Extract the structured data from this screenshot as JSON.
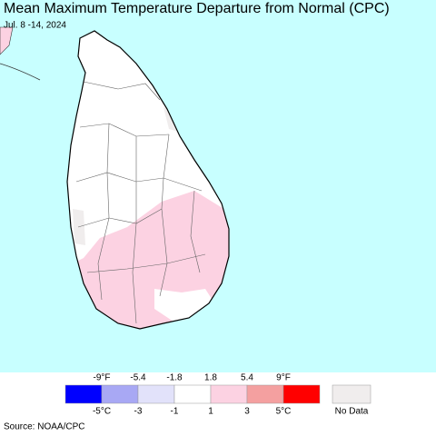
{
  "header": {
    "title": "Mean Maximum Temperature Departure from Normal (CPC)",
    "subtitle": "Jul. 8 -14, 2024"
  },
  "legend": {
    "fahrenheit_labels": [
      "-9°F",
      "-5.4",
      "-1.8",
      "1.8",
      "5.4",
      "9°F"
    ],
    "celsius_labels": [
      "-5°C",
      "-3",
      "-1",
      "1",
      "3",
      "5°C"
    ],
    "colors": [
      "#0000ff",
      "#a8a8f4",
      "#e2e2fa",
      "#ffffff",
      "#fcd2e2",
      "#f4a0a0",
      "#ff0000"
    ],
    "no_data": {
      "label": "No Data",
      "color": "#f0eded"
    }
  },
  "source": "Source: NOAA/CPC"
}
